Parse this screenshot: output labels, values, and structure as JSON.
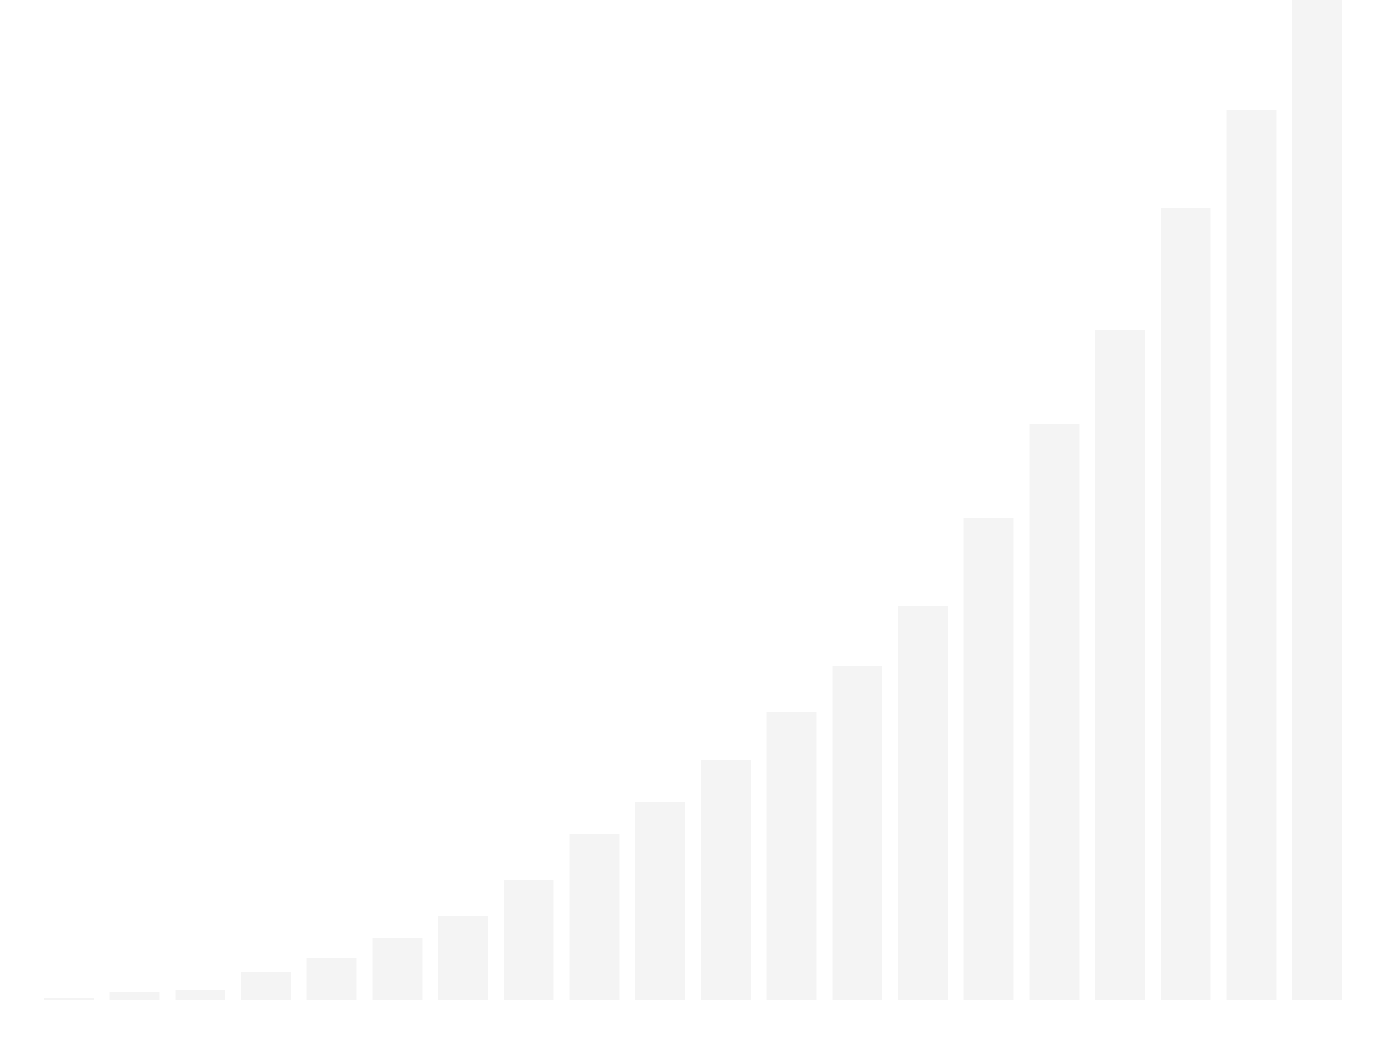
{
  "chart_data": {
    "type": "bar",
    "values": [
      0.2,
      0.8,
      1.0,
      2.8,
      4.2,
      6.2,
      8.4,
      12.0,
      16.6,
      19.8,
      24.0,
      28.8,
      33.4,
      39.4,
      48.2,
      57.6,
      67.0,
      79.2,
      89.0,
      100.0
    ],
    "ylim": [
      0,
      100
    ],
    "grid": false,
    "colors": {
      "bar": "#f4f4f4",
      "background": "#ffffff"
    }
  }
}
